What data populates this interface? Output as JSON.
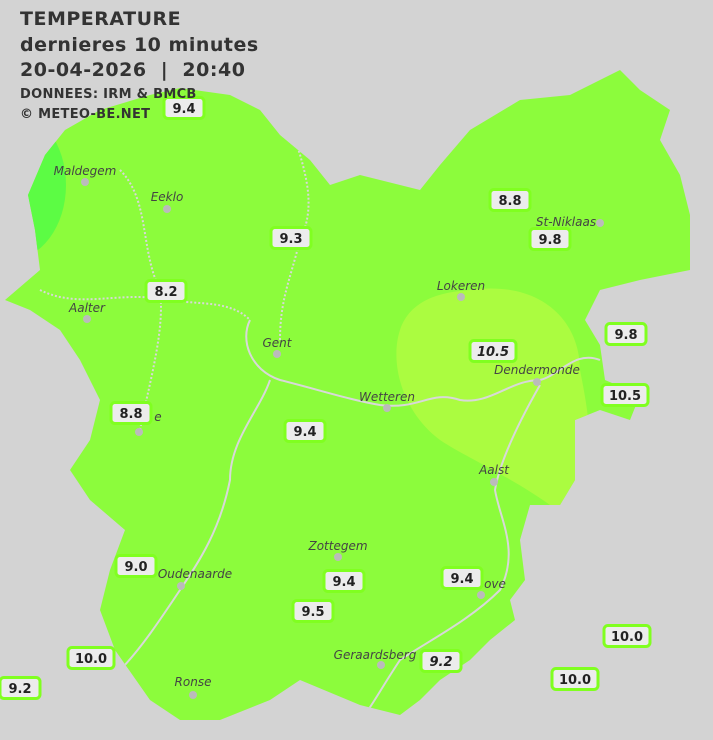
{
  "header": {
    "title": "TEMPERATURE",
    "subtitle": "dernieres 10 minutes",
    "datetime": "20-04-2026  |  20:40",
    "source": "DONNEES: IRM & BMCB",
    "copyright": "© METEO-BE.NET"
  },
  "colors": {
    "background": "#d3d3d3",
    "zone_main": "#8cfc3c",
    "zone_warm": "#abfc40",
    "zone_cool": "#5cfc44",
    "label_border": "#80ff20",
    "label_fill": "#ececec",
    "rivers": "#d8d8d8"
  },
  "cities": [
    {
      "name": "Maldegem"
    },
    {
      "name": "Eeklo"
    },
    {
      "name": "St-Niklaas"
    },
    {
      "name": "Lokeren"
    },
    {
      "name": "Aalter"
    },
    {
      "name": "Gent"
    },
    {
      "name": "Dendermonde"
    },
    {
      "name": "Wetteren"
    },
    {
      "name": "Aalst"
    },
    {
      "name": "Zottegem"
    },
    {
      "name": "Oudenaarde"
    },
    {
      "name": "Ronse"
    },
    {
      "name": "Geraardsberg"
    },
    {
      "name": "e"
    },
    {
      "name": "ove"
    }
  ],
  "stations": [
    {
      "value": "9.4",
      "italic": false
    },
    {
      "value": "8.8",
      "italic": false
    },
    {
      "value": "9.3",
      "italic": false
    },
    {
      "value": "9.8",
      "italic": false
    },
    {
      "value": "8.2",
      "italic": false
    },
    {
      "value": "9.8",
      "italic": false
    },
    {
      "value": "10.5",
      "italic": true
    },
    {
      "value": "10.5",
      "italic": false
    },
    {
      "value": "8.8",
      "italic": false
    },
    {
      "value": "9.4",
      "italic": false
    },
    {
      "value": "9.0",
      "italic": false
    },
    {
      "value": "9.4",
      "italic": false
    },
    {
      "value": "9.4",
      "italic": false
    },
    {
      "value": "9.5",
      "italic": false
    },
    {
      "value": "10.0",
      "italic": false
    },
    {
      "value": "10.0",
      "italic": false
    },
    {
      "value": "9.2",
      "italic": true
    },
    {
      "value": "10.0",
      "italic": false
    },
    {
      "value": "9.2",
      "italic": false
    }
  ]
}
